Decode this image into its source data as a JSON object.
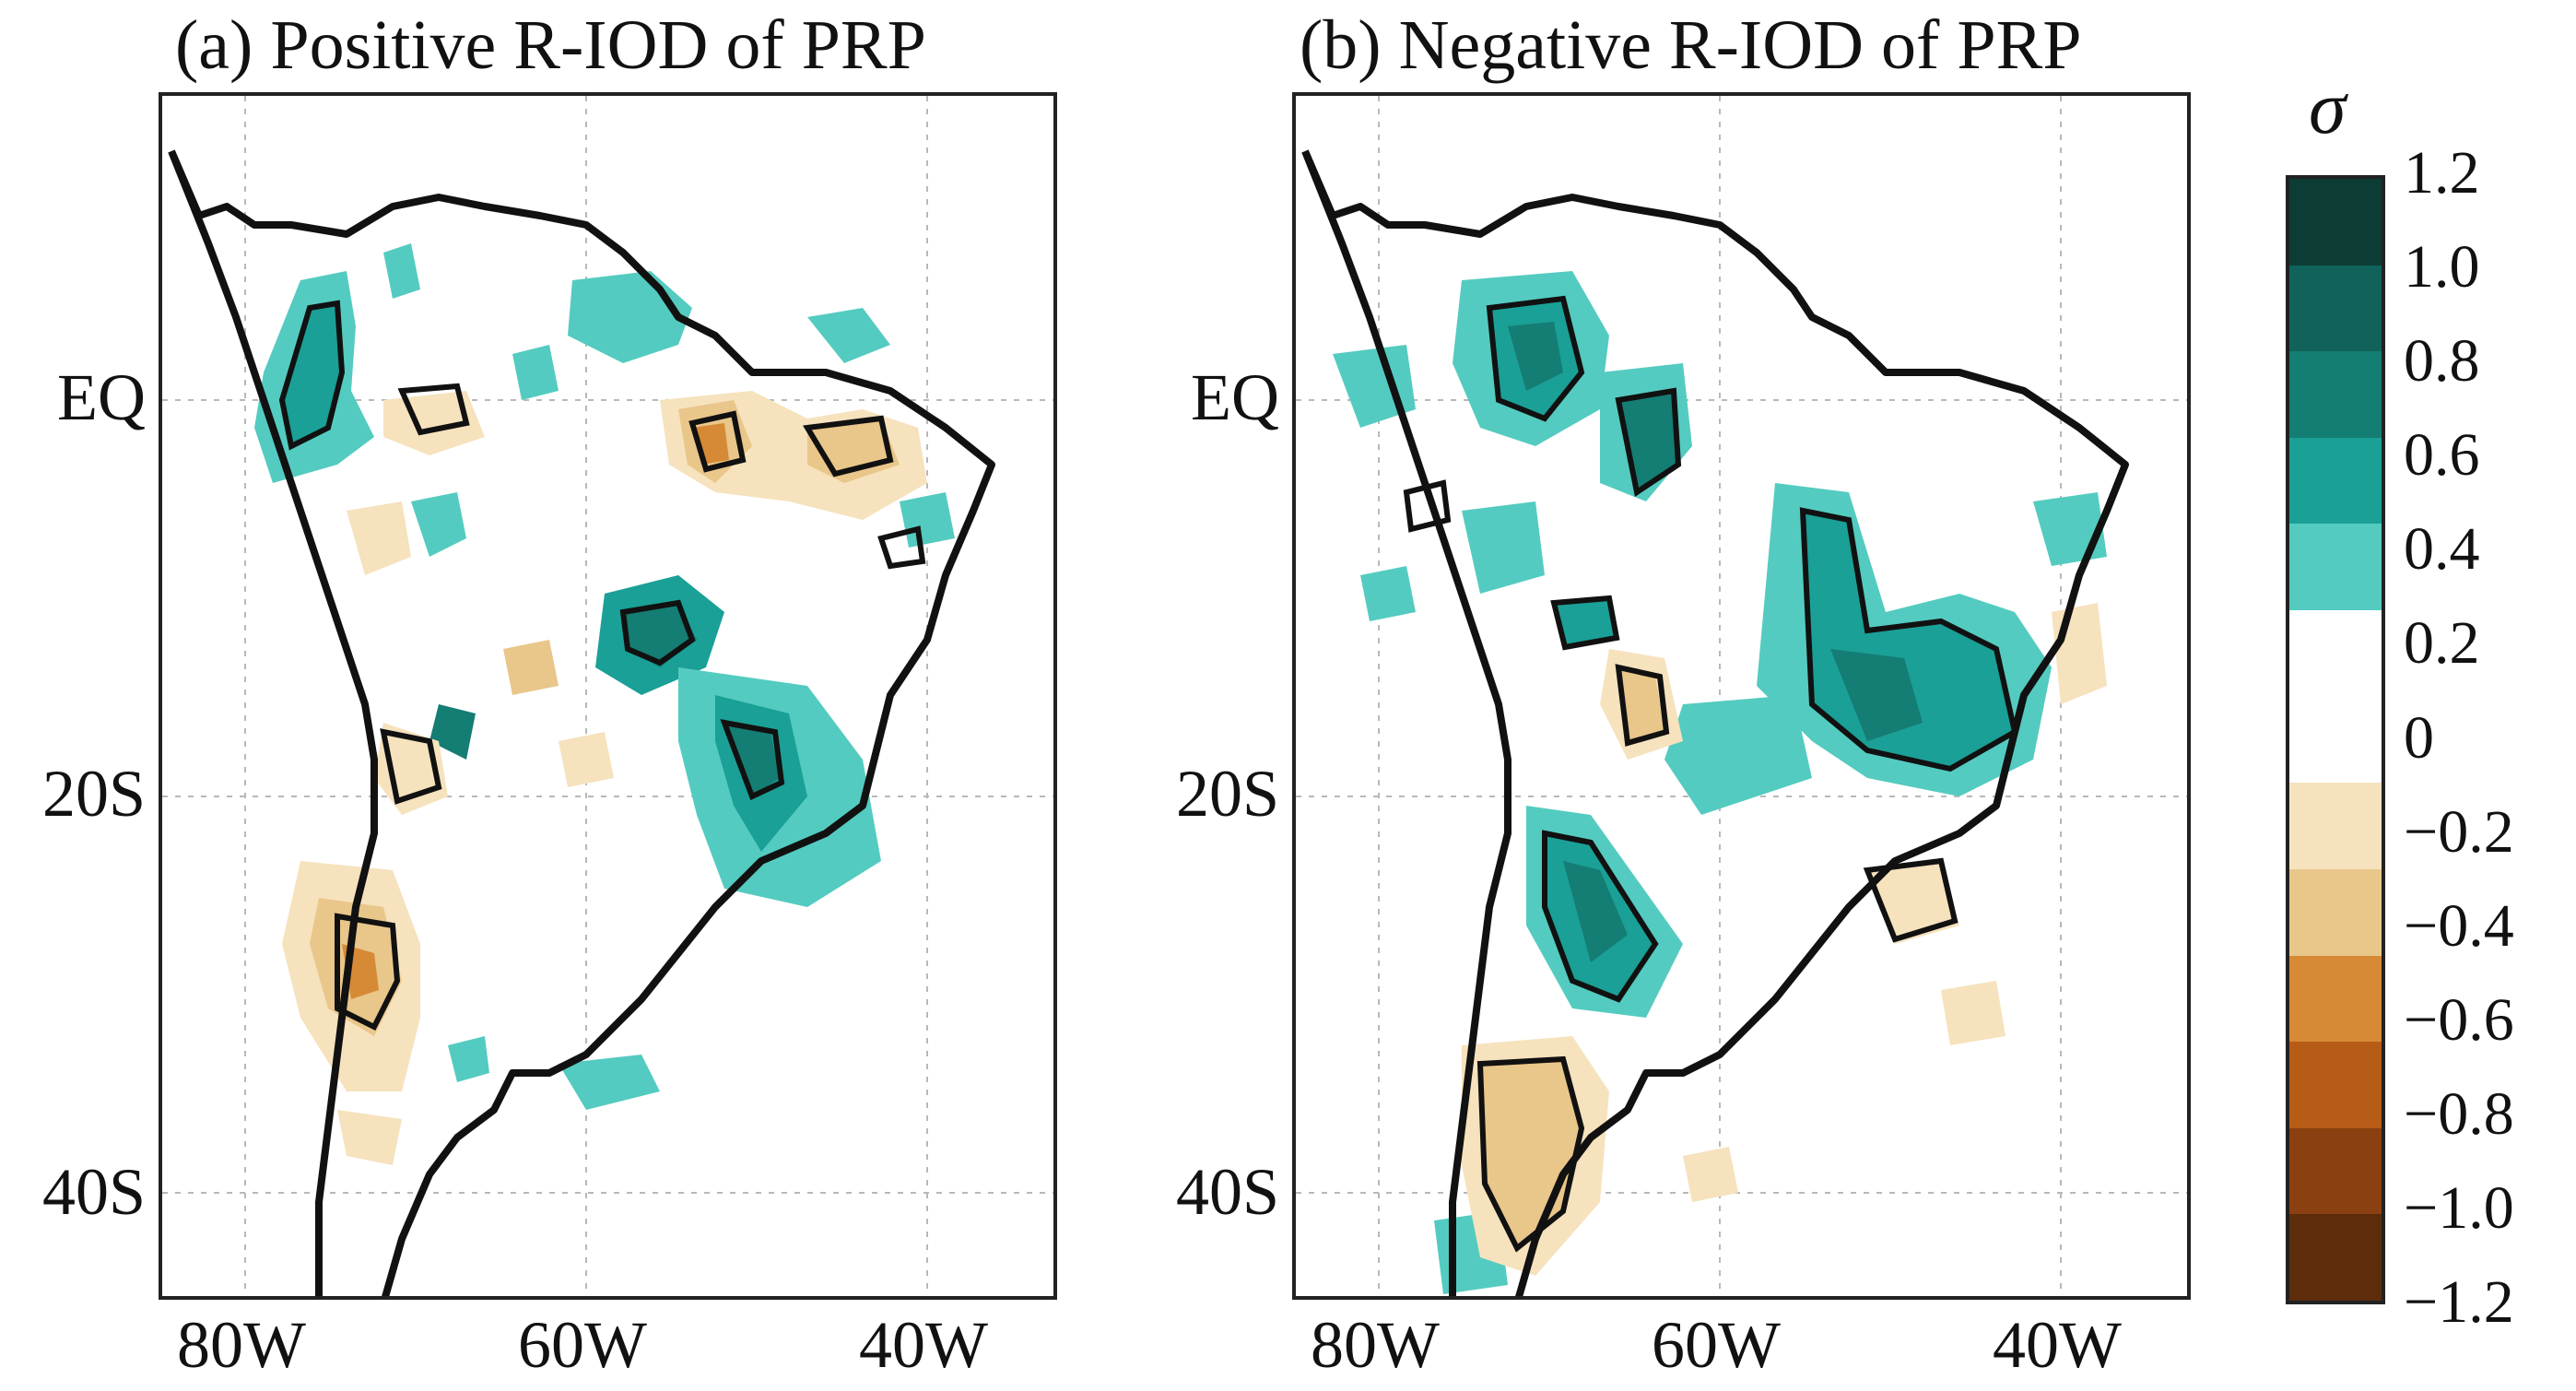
{
  "panels": [
    {
      "id": "a",
      "title": "(a) Positive R-IOD of PRP"
    },
    {
      "id": "b",
      "title": "(b) Negative R-IOD of PRP"
    }
  ],
  "axes": {
    "lat_labels": [
      "EQ",
      "20S",
      "40S"
    ],
    "lon_labels": [
      "80W",
      "60W",
      "40W"
    ]
  },
  "colorbar": {
    "title": "σ",
    "ticks": [
      "1.2",
      "1.0",
      "0.8",
      "0.6",
      "0.4",
      "0.2",
      "0",
      "−0.2",
      "−0.4",
      "−0.6",
      "−0.8",
      "−1.0",
      "−1.2"
    ],
    "colors": [
      "#0b3d34",
      "#11625a",
      "#147d74",
      "#1aa096",
      "#54cbc0",
      "#ffffff",
      "#ffffff",
      "#f6e2bd",
      "#e9c68a",
      "#d68a36",
      "#b75c17",
      "#8a4010",
      "#5c2c0b"
    ]
  },
  "colors": {
    "pos_dark": "#147d74",
    "pos_mid": "#1aa096",
    "pos_light": "#54cbc0",
    "neg_light": "#f6e2bd",
    "neg_mid": "#e9c68a",
    "neg_dark": "#d68a36",
    "outline": "#111111",
    "grid": "#b8b8b8"
  }
}
